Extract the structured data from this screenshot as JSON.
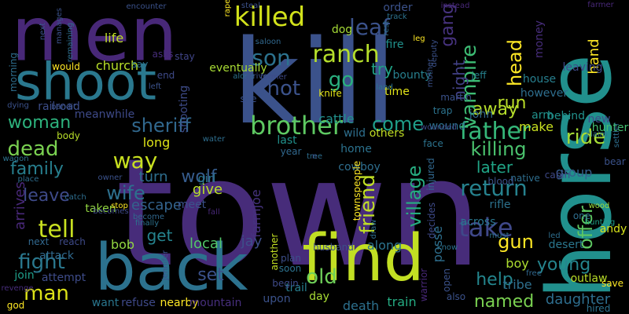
{
  "words": [
    {
      "text": "town",
      "color": "#472c7a"
    },
    {
      "text": "kill",
      "color": "#3b528b"
    },
    {
      "text": "horse",
      "color": "#21908d"
    },
    {
      "text": "men",
      "color": "#482878"
    },
    {
      "text": "back",
      "color": "#2c728e"
    },
    {
      "text": "find",
      "color": "#c2df23"
    },
    {
      "text": "shoot",
      "color": "#2a788e"
    },
    {
      "text": "killed",
      "color": "#d2e21b"
    },
    {
      "text": "brother",
      "color": "#5ec962"
    },
    {
      "text": "father",
      "color": "#35b779"
    },
    {
      "text": "ranch",
      "color": "#b5de2b"
    },
    {
      "text": "son",
      "color": "#2c728e"
    },
    {
      "text": "shot",
      "color": "#3b528b"
    },
    {
      "text": "vampire",
      "color": "#3dbc74"
    },
    {
      "text": "tell",
      "color": "#c8e020"
    },
    {
      "text": "return",
      "color": "#26828e"
    },
    {
      "text": "leaf",
      "color": "#3b528b"
    },
    {
      "text": "gang",
      "color": "#46327e"
    },
    {
      "text": "dead",
      "color": "#7ad151"
    },
    {
      "text": "sheriff",
      "color": "#31688e"
    },
    {
      "text": "woman",
      "color": "#2db27d"
    },
    {
      "text": "come",
      "color": "#1f9e89"
    },
    {
      "text": "killing",
      "color": "#4ac16d"
    },
    {
      "text": "family",
      "color": "#277f8e"
    },
    {
      "text": "way",
      "color": "#c8e020"
    },
    {
      "text": "wolf",
      "color": "#365c8d"
    },
    {
      "text": "wife",
      "color": "#2d708e"
    },
    {
      "text": "leave",
      "color": "#3e4a89"
    },
    {
      "text": "take",
      "color": "#3f4889"
    },
    {
      "text": "ride",
      "color": "#a5db36"
    },
    {
      "text": "head",
      "color": "#fde725"
    },
    {
      "text": "gun",
      "color": "#fde725"
    },
    {
      "text": "fight",
      "color": "#2a788e"
    },
    {
      "text": "man",
      "color": "#dde318"
    },
    {
      "text": "village",
      "color": "#26ad81"
    },
    {
      "text": "friend",
      "color": "#c0df25"
    },
    {
      "text": "old",
      "color": "#6ece58"
    },
    {
      "text": "young",
      "color": "#25858e"
    },
    {
      "text": "set",
      "color": "#3b528b"
    },
    {
      "text": "help",
      "color": "#24868e"
    },
    {
      "text": "named",
      "color": "#7ad151"
    },
    {
      "text": "offer",
      "color": "#5ec962"
    },
    {
      "text": "go",
      "color": "#2ab07f"
    },
    {
      "text": "try",
      "color": "#20a386"
    },
    {
      "text": "night",
      "color": "#424186"
    },
    {
      "text": "run",
      "color": "#bade28"
    },
    {
      "text": "away",
      "color": "#b5de2b"
    },
    {
      "text": "arrives",
      "color": "#482878"
    },
    {
      "text": "later",
      "color": "#20a486"
    },
    {
      "text": "escape",
      "color": "#33638d"
    },
    {
      "text": "turn",
      "color": "#2e6e8e"
    },
    {
      "text": "give",
      "color": "#b8de29"
    },
    {
      "text": "get",
      "color": "#25838e"
    },
    {
      "text": "local",
      "color": "#52c569"
    },
    {
      "text": "jay",
      "color": "#3d4e8a"
    },
    {
      "text": "farmjoe",
      "color": "#46337f"
    },
    {
      "text": "bob",
      "color": "#93d741"
    },
    {
      "text": "boy",
      "color": "#addc30"
    },
    {
      "text": "tribe",
      "color": "#2e6f8e"
    },
    {
      "text": "daughter",
      "color": "#2e6e8e"
    },
    {
      "text": "death",
      "color": "#2d708e"
    },
    {
      "text": "train",
      "color": "#25ab82"
    },
    {
      "text": "long",
      "color": "#dde318"
    },
    {
      "text": "posse",
      "color": "#2e6f8e"
    },
    {
      "text": "along",
      "color": "#2c738e"
    },
    {
      "text": "life",
      "color": "#c0df25"
    },
    {
      "text": "church",
      "color": "#b8de29"
    },
    {
      "text": "cattle",
      "color": "#21918c"
    },
    {
      "text": "make",
      "color": "#c8e020"
    },
    {
      "text": "group",
      "color": "#355f8d"
    },
    {
      "text": "money",
      "color": "#472d7b"
    },
    {
      "text": "house",
      "color": "#277f8e"
    },
    {
      "text": "hand",
      "color": "#fde725"
    },
    {
      "text": "leaving",
      "color": "#3e4a89"
    },
    {
      "text": "new",
      "color": "#3e4c8a"
    },
    {
      "text": "behind",
      "color": "#21918c"
    },
    {
      "text": "rifle",
      "color": "#2c728e"
    },
    {
      "text": "across",
      "color": "#2a778e"
    },
    {
      "text": "one",
      "color": "#2e6e8e"
    },
    {
      "text": "hunting",
      "color": "#1fa088"
    },
    {
      "text": "wood",
      "color": "#9bd93c"
    },
    {
      "text": "andy",
      "color": "#d5e21a"
    },
    {
      "text": "desert",
      "color": "#2a778e"
    },
    {
      "text": "outlaw",
      "color": "#bade28"
    },
    {
      "text": "nearby",
      "color": "#fde725"
    },
    {
      "text": "refuse",
      "color": "#3e4989"
    },
    {
      "text": "want",
      "color": "#2a768e"
    },
    {
      "text": "mountain",
      "color": "#472f7d"
    },
    {
      "text": "upon",
      "color": "#3b528b"
    },
    {
      "text": "trail",
      "color": "#277e8e"
    },
    {
      "text": "day",
      "color": "#a8db34"
    },
    {
      "text": "attempt",
      "color": "#3e4c8a"
    },
    {
      "text": "join",
      "color": "#1f9e89"
    },
    {
      "text": "attack",
      "color": "#30698e"
    },
    {
      "text": "eventually",
      "color": "#a8db34"
    },
    {
      "text": "bounty",
      "color": "#277f8e"
    },
    {
      "text": "time",
      "color": "#e2e418"
    },
    {
      "text": "john",
      "color": "#31688e"
    },
    {
      "text": "jeff",
      "color": "#26828e"
    },
    {
      "text": "however",
      "color": "#2e6e8e"
    },
    {
      "text": "arm",
      "color": "#21918c"
    },
    {
      "text": "hunter",
      "color": "#44bf70"
    },
    {
      "text": "bear",
      "color": "#3b528b"
    },
    {
      "text": "dog",
      "color": "#a5db36"
    },
    {
      "text": "order",
      "color": "#3b528b"
    },
    {
      "text": "fire",
      "color": "#21918c"
    },
    {
      "text": "meanwhile",
      "color": "#3e4a89"
    },
    {
      "text": "railroad",
      "color": "#3d4e8a"
    },
    {
      "text": "shooting",
      "color": "#3e4c8a"
    },
    {
      "text": "wild",
      "color": "#2e6f8e"
    },
    {
      "text": "home",
      "color": "#2c728e"
    },
    {
      "text": "others",
      "color": "#c2df23"
    },
    {
      "text": "cowboy",
      "color": "#2e6e8e"
    },
    {
      "text": "townspeople",
      "color": "#fde725"
    },
    {
      "text": "taken",
      "color": "#93d741"
    },
    {
      "text": "girl",
      "color": "#2a778e"
    },
    {
      "text": "meet",
      "color": "#3b528b"
    },
    {
      "text": "body",
      "color": "#b8de29"
    },
    {
      "text": "stay",
      "color": "#404588"
    },
    {
      "text": "asks",
      "color": "#472d7b"
    },
    {
      "text": "end",
      "color": "#3e4a89"
    },
    {
      "text": "see",
      "color": "#3b528b"
    },
    {
      "text": "knife",
      "color": "#e2e418"
    },
    {
      "text": "wound",
      "color": "#2c728e"
    },
    {
      "text": "martin",
      "color": "#3b528b"
    },
    {
      "text": "trap",
      "color": "#2c738e"
    },
    {
      "text": "face",
      "color": "#2c738e"
    },
    {
      "text": "last",
      "color": "#21918c"
    },
    {
      "text": "year",
      "color": "#31688e"
    },
    {
      "text": "decides",
      "color": "#3e4a89"
    },
    {
      "text": "another",
      "color": "#c2df23"
    },
    {
      "text": "husband",
      "color": "#3d4e8a"
    },
    {
      "text": "plan",
      "color": "#3d4e8a"
    },
    {
      "text": "soon",
      "color": "#2c728e"
    },
    {
      "text": "begin",
      "color": "#3e4a89"
    },
    {
      "text": "also",
      "color": "#3b528b"
    },
    {
      "text": "warrior",
      "color": "#482878"
    },
    {
      "text": "open",
      "color": "#3b528b"
    },
    {
      "text": "injured",
      "color": "#31688e"
    },
    {
      "text": "native",
      "color": "#2e6e8e"
    },
    {
      "text": "cabin",
      "color": "#3e4a89"
    },
    {
      "text": "blood",
      "color": "#3b528b"
    },
    {
      "text": "must",
      "color": "#2c728e"
    },
    {
      "text": "led",
      "color": "#2e6e8e"
    },
    {
      "text": "free",
      "color": "#31688e"
    },
    {
      "text": "save",
      "color": "#fde725"
    },
    {
      "text": "hired",
      "color": "#2c728e"
    },
    {
      "text": "god",
      "color": "#fde725"
    },
    {
      "text": "revenge",
      "color": "#472d7b"
    },
    {
      "text": "next",
      "color": "#31688e"
    },
    {
      "text": "reach",
      "color": "#3e4a89"
    },
    {
      "text": "wagon",
      "color": "#2c728e"
    },
    {
      "text": "place",
      "color": "#2e6e8e"
    },
    {
      "text": "catch",
      "color": "#2e6e8e"
    },
    {
      "text": "stop",
      "color": "#fde725"
    },
    {
      "text": "owner",
      "color": "#3b528b"
    },
    {
      "text": "becomes",
      "color": "#3e4a89"
    },
    {
      "text": "become",
      "color": "#31688e"
    },
    {
      "text": "finally",
      "color": "#2c728e"
    },
    {
      "text": "left",
      "color": "#3b528b"
    },
    {
      "text": "fall",
      "color": "#482878"
    },
    {
      "text": "jennifer",
      "color": "#3b528b"
    },
    {
      "text": "morning",
      "color": "#2e6e8e"
    },
    {
      "text": "would",
      "color": "#fde725"
    },
    {
      "text": "next",
      "color": "#3b528b"
    },
    {
      "text": "manages",
      "color": "#3b528b"
    },
    {
      "text": "remaining",
      "color": "#2e6e8e"
    },
    {
      "text": "encounter",
      "color": "#3b528b"
    },
    {
      "text": "rape",
      "color": "#fde725"
    },
    {
      "text": "saloon",
      "color": "#31688e"
    },
    {
      "text": "former",
      "color": "#3e4a89"
    },
    {
      "text": "alone",
      "color": "#2c728e"
    },
    {
      "text": "steal",
      "color": "#3b528b"
    },
    {
      "text": "track",
      "color": "#2c728e"
    },
    {
      "text": "rest",
      "color": "#2e6e8e"
    },
    {
      "text": "leg",
      "color": "#fde725"
    },
    {
      "text": "land",
      "color": "#2c728e"
    },
    {
      "text": "mother",
      "color": "#3b528b"
    },
    {
      "text": "deputy",
      "color": "#3b528b"
    },
    {
      "text": "instead",
      "color": "#482878"
    },
    {
      "text": "farmer",
      "color": "#482878"
    },
    {
      "text": "claim",
      "color": "#2c728e"
    },
    {
      "text": "settler",
      "color": "#2e6e8e"
    },
    {
      "text": "water",
      "color": "#2e6e8e"
    },
    {
      "text": "arrive",
      "color": "#3b528b"
    },
    {
      "text": "dying",
      "color": "#3b528b"
    },
    {
      "text": "bandit",
      "color": "#3b528b"
    },
    {
      "text": "wounded",
      "color": "#3e4a89"
    },
    {
      "text": "draw",
      "color": "#2e6e8e"
    },
    {
      "text": "know",
      "color": "#2c728e"
    },
    {
      "text": "say",
      "color": "#2c728e"
    },
    {
      "text": "tree",
      "color": "#2e6e8e"
    },
    {
      "text": "n",
      "color": "#3b528b"
    }
  ]
}
